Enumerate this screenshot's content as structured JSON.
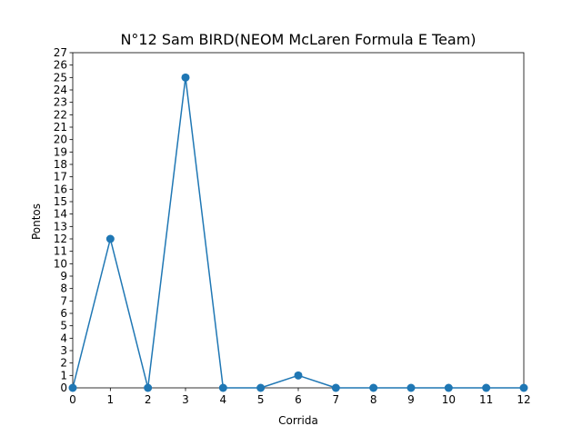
{
  "chart_data": {
    "type": "line",
    "title": "N°12 Sam BIRD(NEOM McLaren Formula E Team)",
    "xlabel": "Corrida",
    "ylabel": "Pontos",
    "x": [
      0,
      1,
      2,
      3,
      4,
      5,
      6,
      7,
      8,
      9,
      10,
      11,
      12
    ],
    "values": [
      0,
      12,
      0,
      25,
      0,
      0,
      1,
      0,
      0,
      0,
      0,
      0,
      0
    ],
    "xlim": [
      0,
      12
    ],
    "ylim": [
      0,
      27
    ],
    "x_ticks": [
      0,
      1,
      2,
      3,
      4,
      5,
      6,
      7,
      8,
      9,
      10,
      11,
      12
    ],
    "y_ticks": [
      0,
      1,
      2,
      3,
      4,
      5,
      6,
      7,
      8,
      9,
      10,
      11,
      12,
      13,
      14,
      15,
      16,
      17,
      18,
      19,
      20,
      21,
      22,
      23,
      24,
      25,
      26,
      27
    ],
    "grid": false,
    "line_color": "#1f77b4"
  }
}
